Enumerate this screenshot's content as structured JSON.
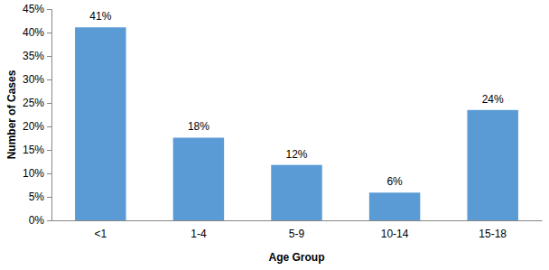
{
  "chart_data": {
    "type": "bar",
    "x_label": "Age Group",
    "y_label": "Number of Cases",
    "categories": [
      "<1",
      "1-4",
      "5-9",
      "10-14",
      "15-18"
    ],
    "values": [
      41.1,
      17.6,
      11.8,
      5.9,
      23.5
    ],
    "value_labels": [
      "41%",
      "18%",
      "12%",
      "6%",
      "24%"
    ],
    "color": "#5b9bd5",
    "ylim": [
      0,
      45
    ],
    "yticks": [
      {
        "value": 0,
        "label": "0%"
      },
      {
        "value": 5,
        "label": "5%"
      },
      {
        "value": 10,
        "label": "10%"
      },
      {
        "value": 15,
        "label": "15%"
      },
      {
        "value": 20,
        "label": "20%"
      },
      {
        "value": 25,
        "label": "25%"
      },
      {
        "value": 30,
        "label": "30%"
      },
      {
        "value": 35,
        "label": "35%"
      },
      {
        "value": 40,
        "label": "40%"
      },
      {
        "value": 45,
        "label": "45%"
      }
    ],
    "grid": false,
    "data_labels": true
  }
}
